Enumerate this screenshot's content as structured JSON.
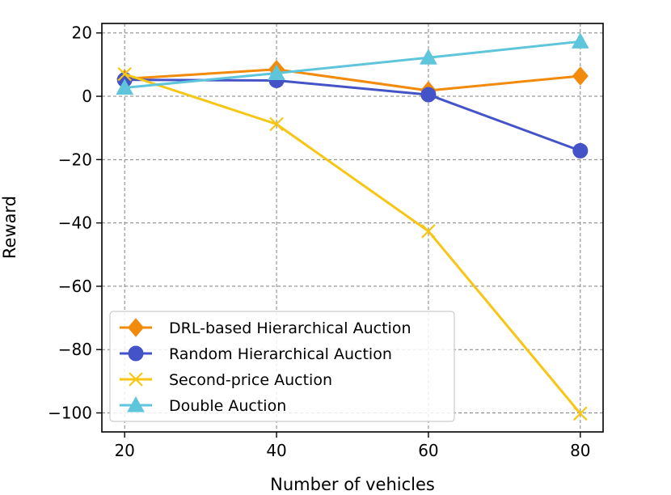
{
  "chart_data": {
    "type": "line",
    "title": "",
    "xlabel": "Number of vehicles",
    "ylabel": "Reward",
    "x": [
      20,
      40,
      60,
      80
    ],
    "xlim": [
      17,
      83
    ],
    "ylim": [
      -106,
      23
    ],
    "xticks": [
      20,
      40,
      60,
      80
    ],
    "yticks": [
      20,
      0,
      -20,
      -40,
      -60,
      -80,
      -100
    ],
    "xtick_labels": [
      "20",
      "40",
      "60",
      "80"
    ],
    "ytick_labels": [
      "20",
      "0",
      "−20",
      "−40",
      "−60",
      "−80",
      "−100"
    ],
    "grid": true,
    "legend_position": "lower-left",
    "series": [
      {
        "name": "DRL-based Hierarchical Auction",
        "values": [
          5.5,
          8.5,
          1.8,
          6.4
        ],
        "color": "#f28a0c",
        "marker": "diamond"
      },
      {
        "name": "Random Hierarchical Auction",
        "values": [
          5.2,
          5.0,
          0.5,
          -17.2
        ],
        "color": "#4453c8",
        "marker": "circle"
      },
      {
        "name": "Second-price Auction",
        "values": [
          7.0,
          -8.8,
          -42.6,
          -100.2
        ],
        "color": "#f7c613",
        "marker": "x"
      },
      {
        "name": "Double Auction",
        "values": [
          2.7,
          7.3,
          12.2,
          17.3
        ],
        "color": "#5ec5db",
        "marker": "triangle"
      }
    ]
  }
}
